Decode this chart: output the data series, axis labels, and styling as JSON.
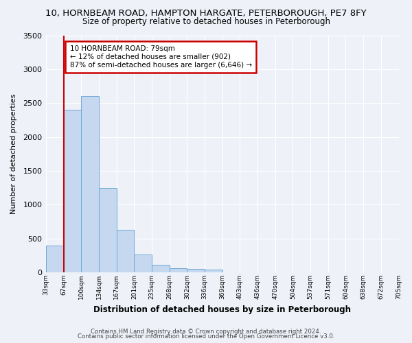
{
  "title_line1": "10, HORNBEAM ROAD, HAMPTON HARGATE, PETERBOROUGH, PE7 8FY",
  "title_line2": "Size of property relative to detached houses in Peterborough",
  "xlabel": "Distribution of detached houses by size in Peterborough",
  "ylabel": "Number of detached properties",
  "bar_values": [
    400,
    2400,
    2600,
    1250,
    630,
    260,
    110,
    60,
    55,
    40,
    0,
    0,
    0,
    0,
    0,
    0,
    0,
    0,
    0,
    0
  ],
  "x_labels": [
    "33sqm",
    "67sqm",
    "100sqm",
    "134sqm",
    "167sqm",
    "201sqm",
    "235sqm",
    "268sqm",
    "302sqm",
    "336sqm",
    "369sqm",
    "403sqm",
    "436sqm",
    "470sqm",
    "504sqm",
    "537sqm",
    "571sqm",
    "604sqm",
    "638sqm",
    "672sqm",
    "705sqm"
  ],
  "bar_color": "#c5d8f0",
  "bar_edge_color": "#6fa8d6",
  "vline_x": 1,
  "annotation_title": "10 HORNBEAM ROAD: 79sqm",
  "annotation_line1": "← 12% of detached houses are smaller (902)",
  "annotation_line2": "87% of semi-detached houses are larger (6,646) →",
  "annotation_box_color": "#ffffff",
  "annotation_box_edge_color": "#cc0000",
  "vline_color": "#cc0000",
  "ylim": [
    0,
    3500
  ],
  "footer_line1": "Contains HM Land Registry data © Crown copyright and database right 2024.",
  "footer_line2": "Contains public sector information licensed under the Open Government Licence v3.0.",
  "background_color": "#eef2f8",
  "grid_color": "#ffffff"
}
